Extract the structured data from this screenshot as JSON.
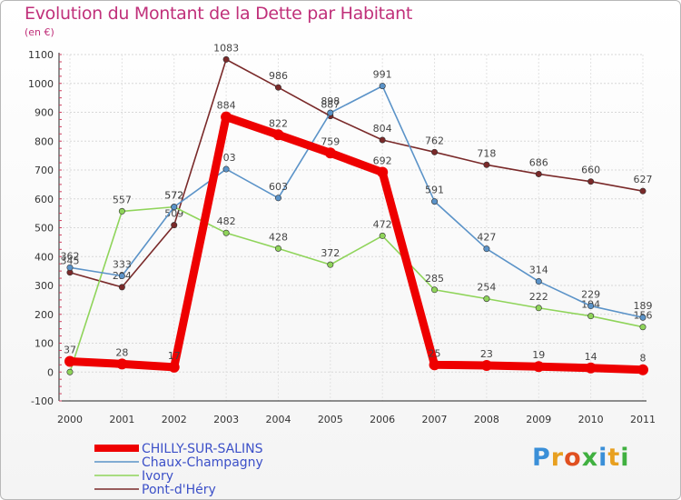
{
  "title": "Evolution du Montant de la Dette par Habitant",
  "subtitle": "(en €)",
  "brand": {
    "letters": [
      "P",
      "r",
      "o",
      "x",
      "i",
      "t",
      "i"
    ],
    "colors": [
      "#3a8fd8",
      "#e8a020",
      "#e05020",
      "#40b040",
      "#3a8fd8",
      "#e8a020",
      "#40b040"
    ]
  },
  "chart_data": {
    "type": "line",
    "title": "Evolution du Montant de la Dette par Habitant",
    "ylabel": "(en €)",
    "xlabel": "",
    "ylim": [
      -100,
      1100
    ],
    "yticks": [
      -100,
      0,
      100,
      200,
      300,
      400,
      500,
      600,
      700,
      800,
      900,
      1000,
      1100
    ],
    "categories": [
      "2000",
      "2001",
      "2002",
      "2003",
      "2004",
      "2005",
      "2006",
      "2007",
      "2008",
      "2009",
      "2010",
      "2011"
    ],
    "series": [
      {
        "name": "CHILLY-SUR-SALINS",
        "color": "#ee0000",
        "values": [
          37,
          28,
          17,
          884,
          822,
          759,
          692,
          25,
          23,
          19,
          14,
          8
        ]
      },
      {
        "name": "Chaux-Champagny",
        "color": "#5b93c8",
        "values": [
          362,
          333,
          572,
          703,
          603,
          898,
          991,
          591,
          427,
          314,
          229,
          189
        ]
      },
      {
        "name": "Ivory",
        "color": "#8fd45a",
        "values": [
          0,
          557,
          572,
          482,
          428,
          372,
          472,
          285,
          254,
          222,
          194,
          156
        ]
      },
      {
        "name": "Pont-d'Héry",
        "color": "#7a2a2a",
        "values": [
          345,
          294,
          509,
          1083,
          986,
          887,
          804,
          762,
          718,
          686,
          660,
          627
        ]
      }
    ],
    "legend_position": "bottom-left"
  }
}
